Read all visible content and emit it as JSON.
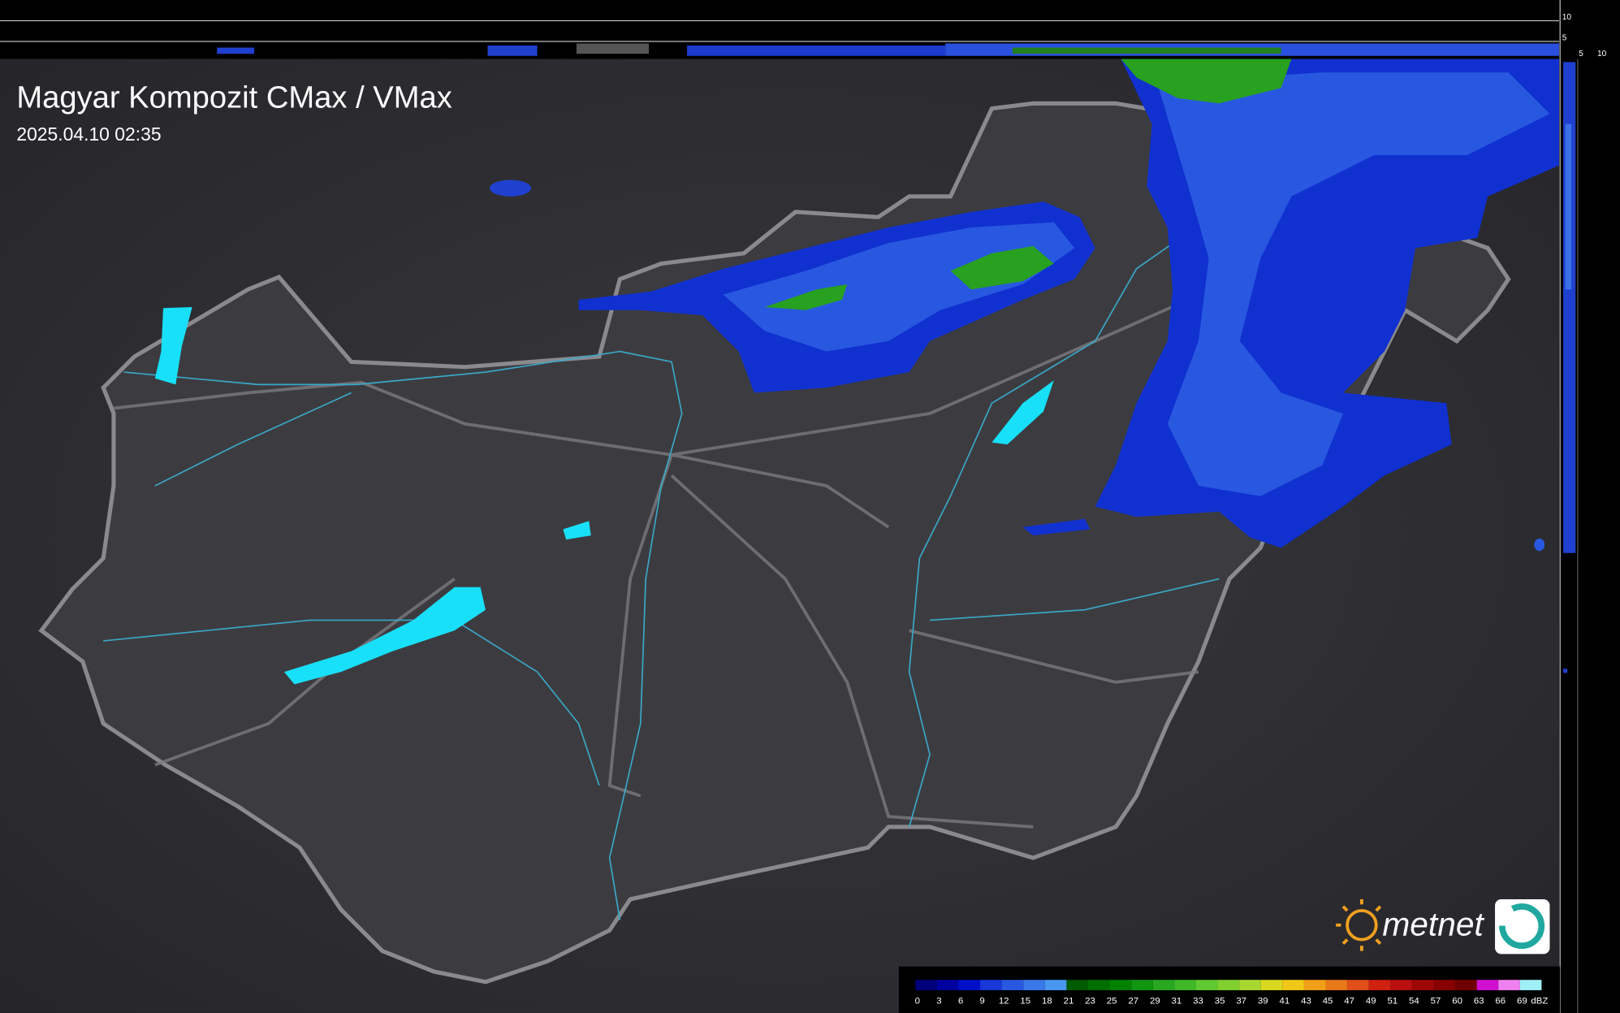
{
  "header": {
    "title": "Magyar Kompozit CMax / VMax",
    "timestamp": "2025.04.10 02:35"
  },
  "side_scale": {
    "top": [
      "10",
      "5"
    ],
    "bottom": [
      "5",
      "10"
    ]
  },
  "legend": {
    "labels": [
      0,
      3,
      6,
      9,
      12,
      15,
      18,
      21,
      23,
      25,
      27,
      29,
      31,
      33,
      35,
      37,
      39,
      41,
      43,
      45,
      47,
      49,
      51,
      54,
      57,
      60,
      63,
      66,
      69
    ],
    "colors": [
      "#00007a",
      "#0000a0",
      "#0010c8",
      "#1838d8",
      "#2858e0",
      "#3878e8",
      "#4898f0",
      "#005a00",
      "#006e00",
      "#008200",
      "#109610",
      "#28a820",
      "#40b828",
      "#60c830",
      "#80d030",
      "#a8d830",
      "#d8d820",
      "#f0c818",
      "#f0a018",
      "#e87818",
      "#e05018",
      "#d02010",
      "#b81010",
      "#a00808",
      "#880000",
      "#700000",
      "#d010d0",
      "#f080f0",
      "#a0f0f8"
    ],
    "unit": "dBZ"
  },
  "logo": {
    "brand": "metnet"
  }
}
